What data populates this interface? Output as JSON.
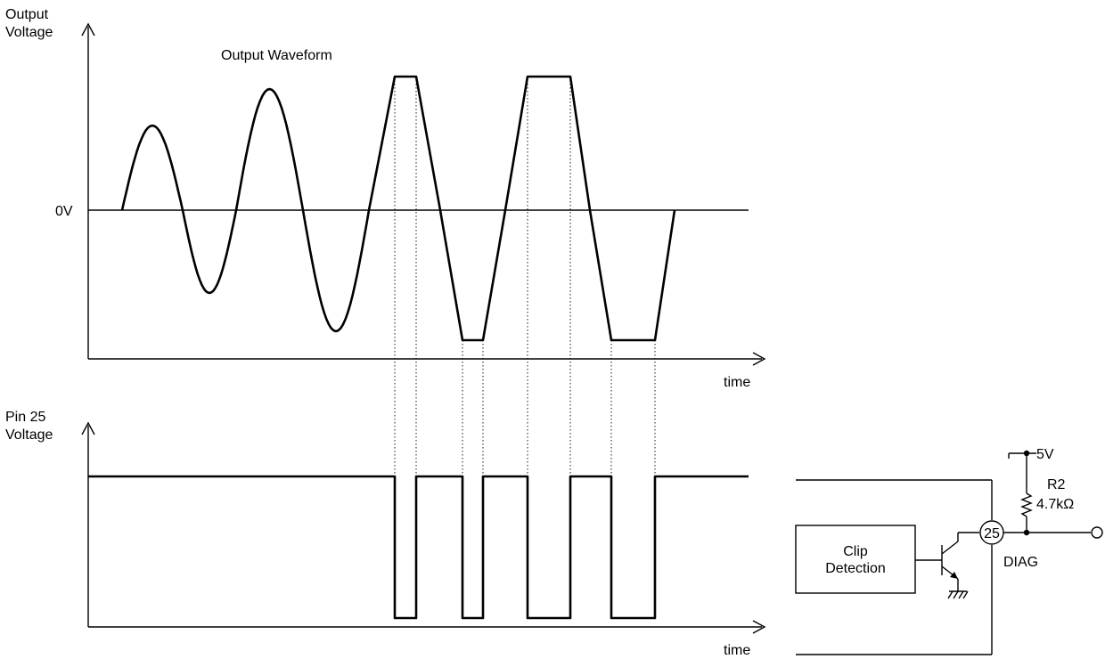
{
  "top_plot": {
    "y_label_line1": "Output",
    "y_label_line2": "Voltage",
    "title": "Output Waveform",
    "zero_label": "0V",
    "x_label": "time"
  },
  "bottom_plot": {
    "y_label_line1": "Pin 25",
    "y_label_line2": "Voltage",
    "x_label": "time"
  },
  "circuit": {
    "block_line1": "Clip",
    "block_line2": "Detection",
    "pin_number": "25",
    "pin_name": "DIAG",
    "supply_label": "5V",
    "resistor_name": "R2",
    "resistor_value": "4.7kΩ"
  },
  "colors": {
    "line": "#000000",
    "background": "#ffffff"
  }
}
